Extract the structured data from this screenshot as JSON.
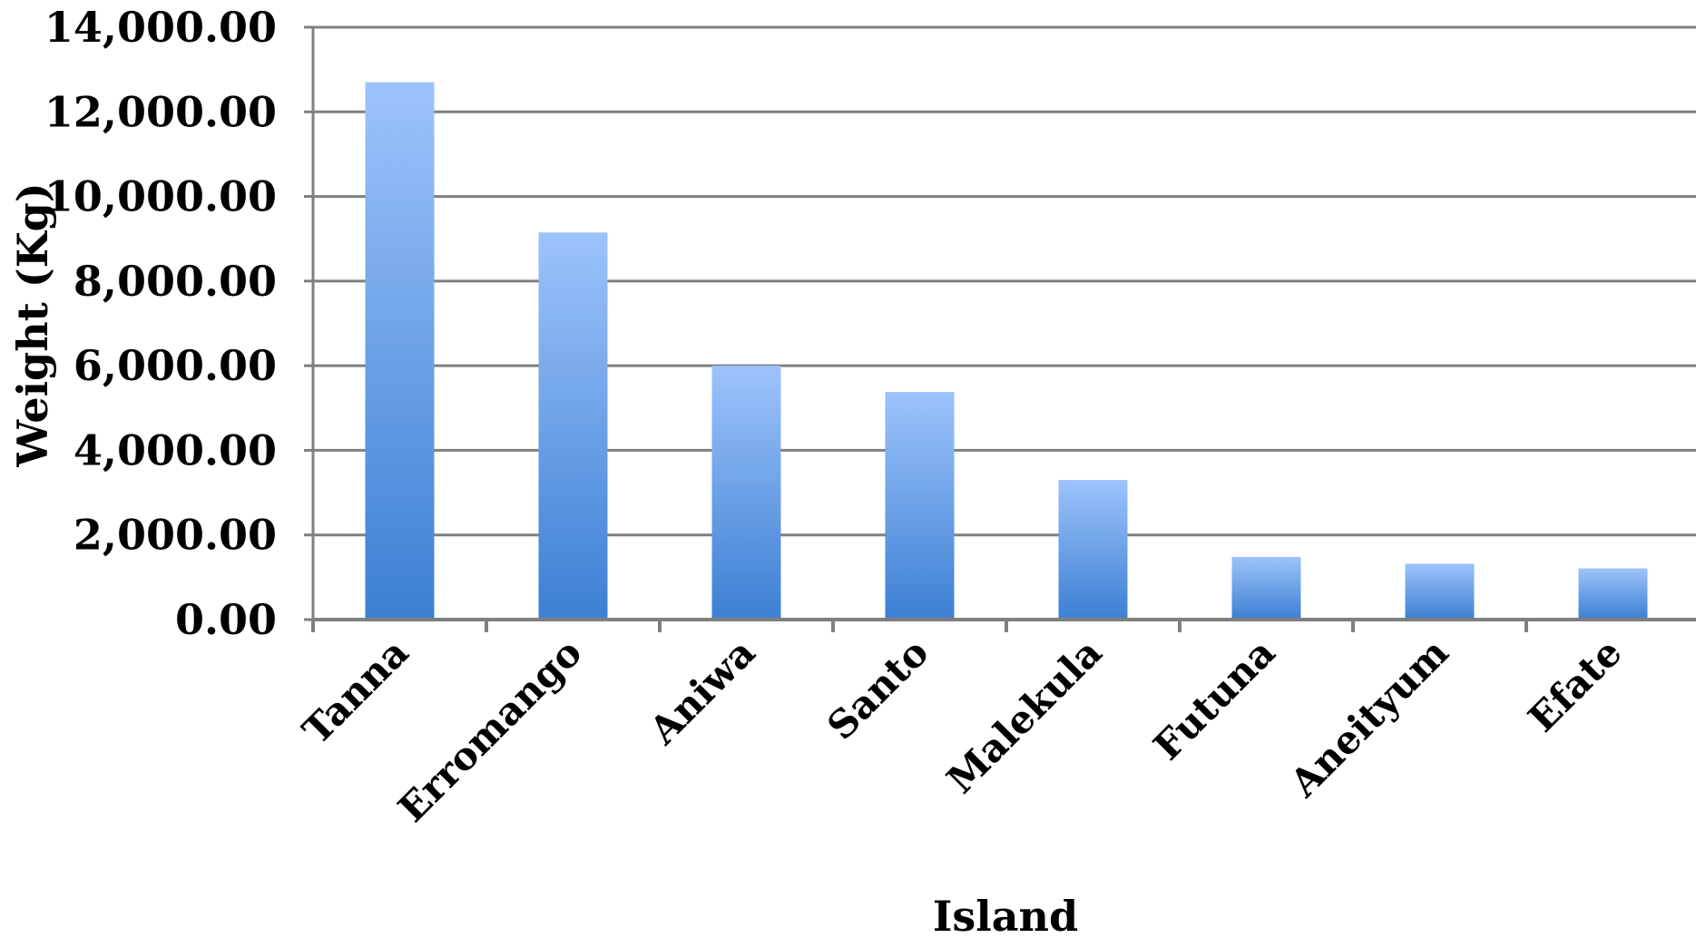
{
  "chart_data": {
    "type": "bar",
    "title": "",
    "xlabel": "Island",
    "ylabel": "Weight (Kg)",
    "categories": [
      "Tanna",
      "Erromango",
      "Aniwa",
      "Santo",
      "Malekula",
      "Futuna",
      "Aneityum",
      "Efate"
    ],
    "values": [
      12700,
      9150,
      6000,
      5380,
      3300,
      1480,
      1320,
      1210
    ],
    "ylim": [
      0,
      14000
    ],
    "yticks": [
      0,
      2000,
      4000,
      6000,
      8000,
      10000,
      12000,
      14000
    ],
    "ytick_labels": [
      "0.00",
      "2,000.00",
      "4,000.00",
      "6,000.00",
      "8,000.00",
      "10,000.00",
      "12,000.00",
      "14,000.00"
    ],
    "grid": true,
    "legend": "none",
    "colors": {
      "bar_top": "#9dc3fb",
      "bar_bottom": "#3c7fd3",
      "grid": "#7f7f7f",
      "axis": "#7f7f7f"
    }
  }
}
